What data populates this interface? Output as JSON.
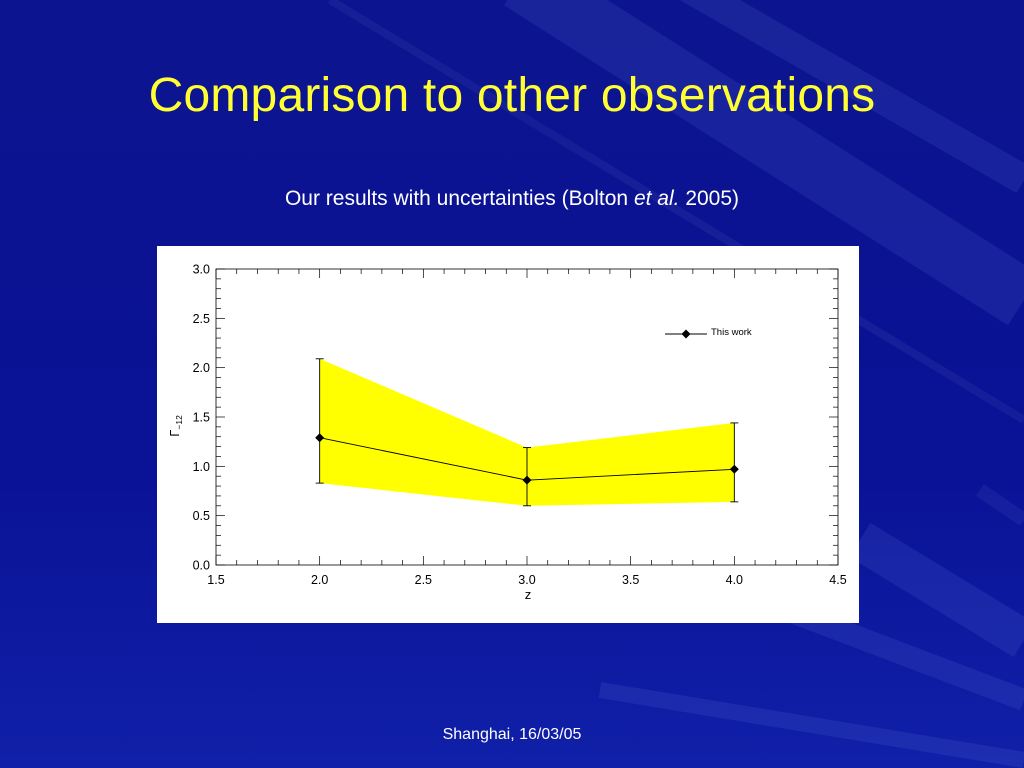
{
  "slide": {
    "title": "Comparison to other observations",
    "subtitle_pre": "Our results with uncertainties (Bolton ",
    "subtitle_italic": "et al.",
    "subtitle_post": " 2005)",
    "footer": "Shanghai, 16/03/05"
  },
  "colors": {
    "background": "#0a1290",
    "title": "#ffff33",
    "band_fill": "#ffff00",
    "line": "#000000"
  },
  "chart_data": {
    "type": "line",
    "title": "",
    "xlabel": "z",
    "ylabel": "Γ−12",
    "ylabel_main": "Γ",
    "ylabel_sub": "−12",
    "xlim": [
      1.5,
      4.5
    ],
    "ylim": [
      0.0,
      3.0
    ],
    "x_ticks": [
      1.5,
      2.0,
      2.5,
      3.0,
      3.5,
      4.0,
      4.5
    ],
    "x_tick_labels": [
      "1.5",
      "2.0",
      "2.5",
      "3.0",
      "3.5",
      "4.0",
      "4.5"
    ],
    "y_ticks": [
      0.0,
      0.5,
      1.0,
      1.5,
      2.0,
      2.5,
      3.0
    ],
    "y_tick_labels": [
      "0.0",
      "0.5",
      "1.0",
      "1.5",
      "2.0",
      "2.5",
      "3.0"
    ],
    "grid": false,
    "legend_position": "top-right",
    "series": [
      {
        "name": "This work",
        "marker": "diamond",
        "x": [
          2.0,
          3.0,
          4.0
        ],
        "y": [
          1.29,
          0.86,
          0.97
        ],
        "y_err_lower": [
          0.83,
          0.6,
          0.64
        ],
        "y_err_upper": [
          2.09,
          1.19,
          1.44
        ]
      }
    ],
    "band": {
      "x": [
        2.0,
        3.0,
        4.0
      ],
      "lower": [
        0.83,
        0.6,
        0.64
      ],
      "upper": [
        2.09,
        1.19,
        1.44
      ],
      "color": "#ffff00"
    }
  }
}
